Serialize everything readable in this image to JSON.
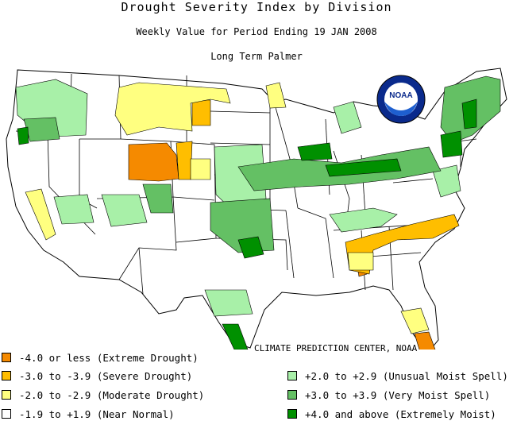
{
  "header": {
    "title": "Drought Severity Index by Division",
    "subtitle": "Weekly Value for Period Ending 19 JAN 2008",
    "index_name": "Long Term Palmer"
  },
  "logo": {
    "text": "NOAA"
  },
  "credit": "CLIMATE PREDICTION CENTER, NOAA",
  "colors": {
    "extreme_drought": "#f58a00",
    "severe_drought": "#ffbe00",
    "moderate_drought": "#ffff80",
    "near_normal": "#ffffff",
    "unusual_moist": "#a8f0a8",
    "very_moist": "#64c064",
    "extremely_moist": "#009000"
  },
  "legend": {
    "left": [
      {
        "label": "-4.0 or less (Extreme Drought)",
        "color": "#f58a00"
      },
      {
        "label": "-3.0 to -3.9 (Severe Drought)",
        "color": "#ffbe00"
      },
      {
        "label": "-2.0 to -2.9 (Moderate Drought)",
        "color": "#ffff80"
      },
      {
        "label": "-1.9 to +1.9 (Near Normal)",
        "color": "#ffffff"
      }
    ],
    "right": [
      {
        "label": "+2.0 to +2.9 (Unusual Moist Spell)",
        "color": "#a8f0a8"
      },
      {
        "label": "+3.0 to +3.9 (Very Moist Spell)",
        "color": "#64c064"
      },
      {
        "label": "+4.0 and above (Extremely Moist)",
        "color": "#009000"
      }
    ]
  }
}
